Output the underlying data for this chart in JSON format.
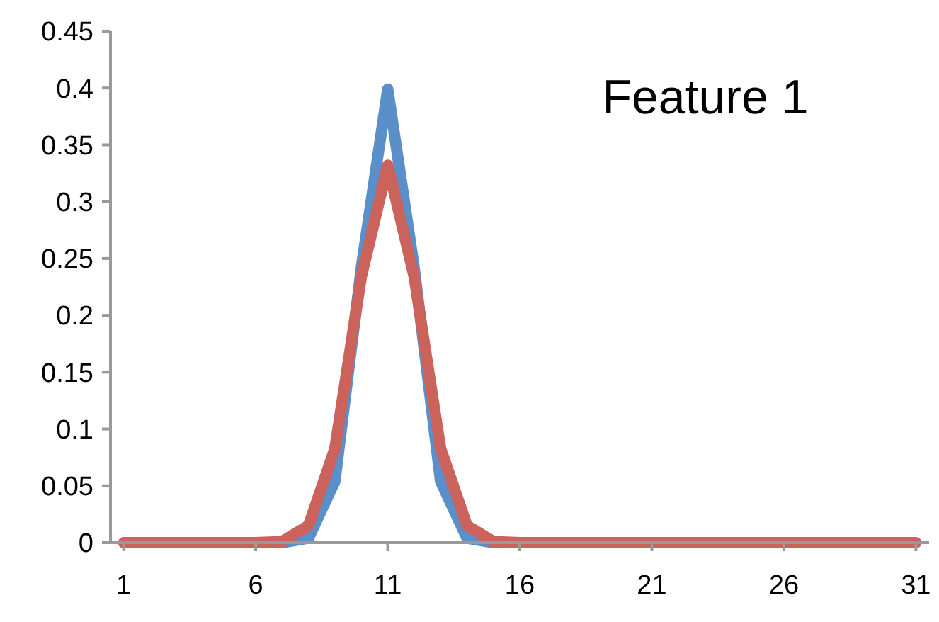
{
  "chart_data": {
    "type": "line",
    "annotations": [
      "Feature 1"
    ],
    "x": [
      1,
      2,
      3,
      4,
      5,
      6,
      7,
      8,
      9,
      10,
      11,
      12,
      13,
      14,
      15,
      16,
      17,
      18,
      19,
      20,
      21,
      22,
      23,
      24,
      25,
      26,
      27,
      28,
      29,
      30,
      31
    ],
    "series": [
      {
        "color": "#5b8fc9",
        "values": [
          null,
          null,
          null,
          null,
          null,
          0,
          0,
          0.004,
          0.054,
          0.242,
          0.399,
          0.242,
          0.054,
          0.004,
          0,
          0,
          null,
          null,
          null,
          null,
          null,
          null,
          null,
          null,
          null,
          null,
          null,
          null,
          null,
          null,
          null
        ]
      },
      {
        "color": "#cb625b",
        "values": [
          0,
          0,
          0,
          0,
          0,
          0,
          0.001,
          0.015,
          0.083,
          0.234,
          0.332,
          0.234,
          0.083,
          0.015,
          0.001,
          0,
          0,
          0,
          0,
          0,
          0,
          0,
          0,
          0,
          0,
          0,
          0,
          0,
          0,
          0,
          0
        ]
      }
    ],
    "xlim": [
      0.5,
      31.5
    ],
    "xticks": [
      1,
      6,
      11,
      16,
      21,
      26,
      31
    ],
    "ylim": [
      0,
      0.45
    ],
    "yticks": [
      0,
      0.05,
      0.1,
      0.15,
      0.2,
      0.25,
      0.3,
      0.35,
      0.4,
      0.45
    ],
    "grid": false,
    "marker": "none",
    "line_style": "solid"
  }
}
